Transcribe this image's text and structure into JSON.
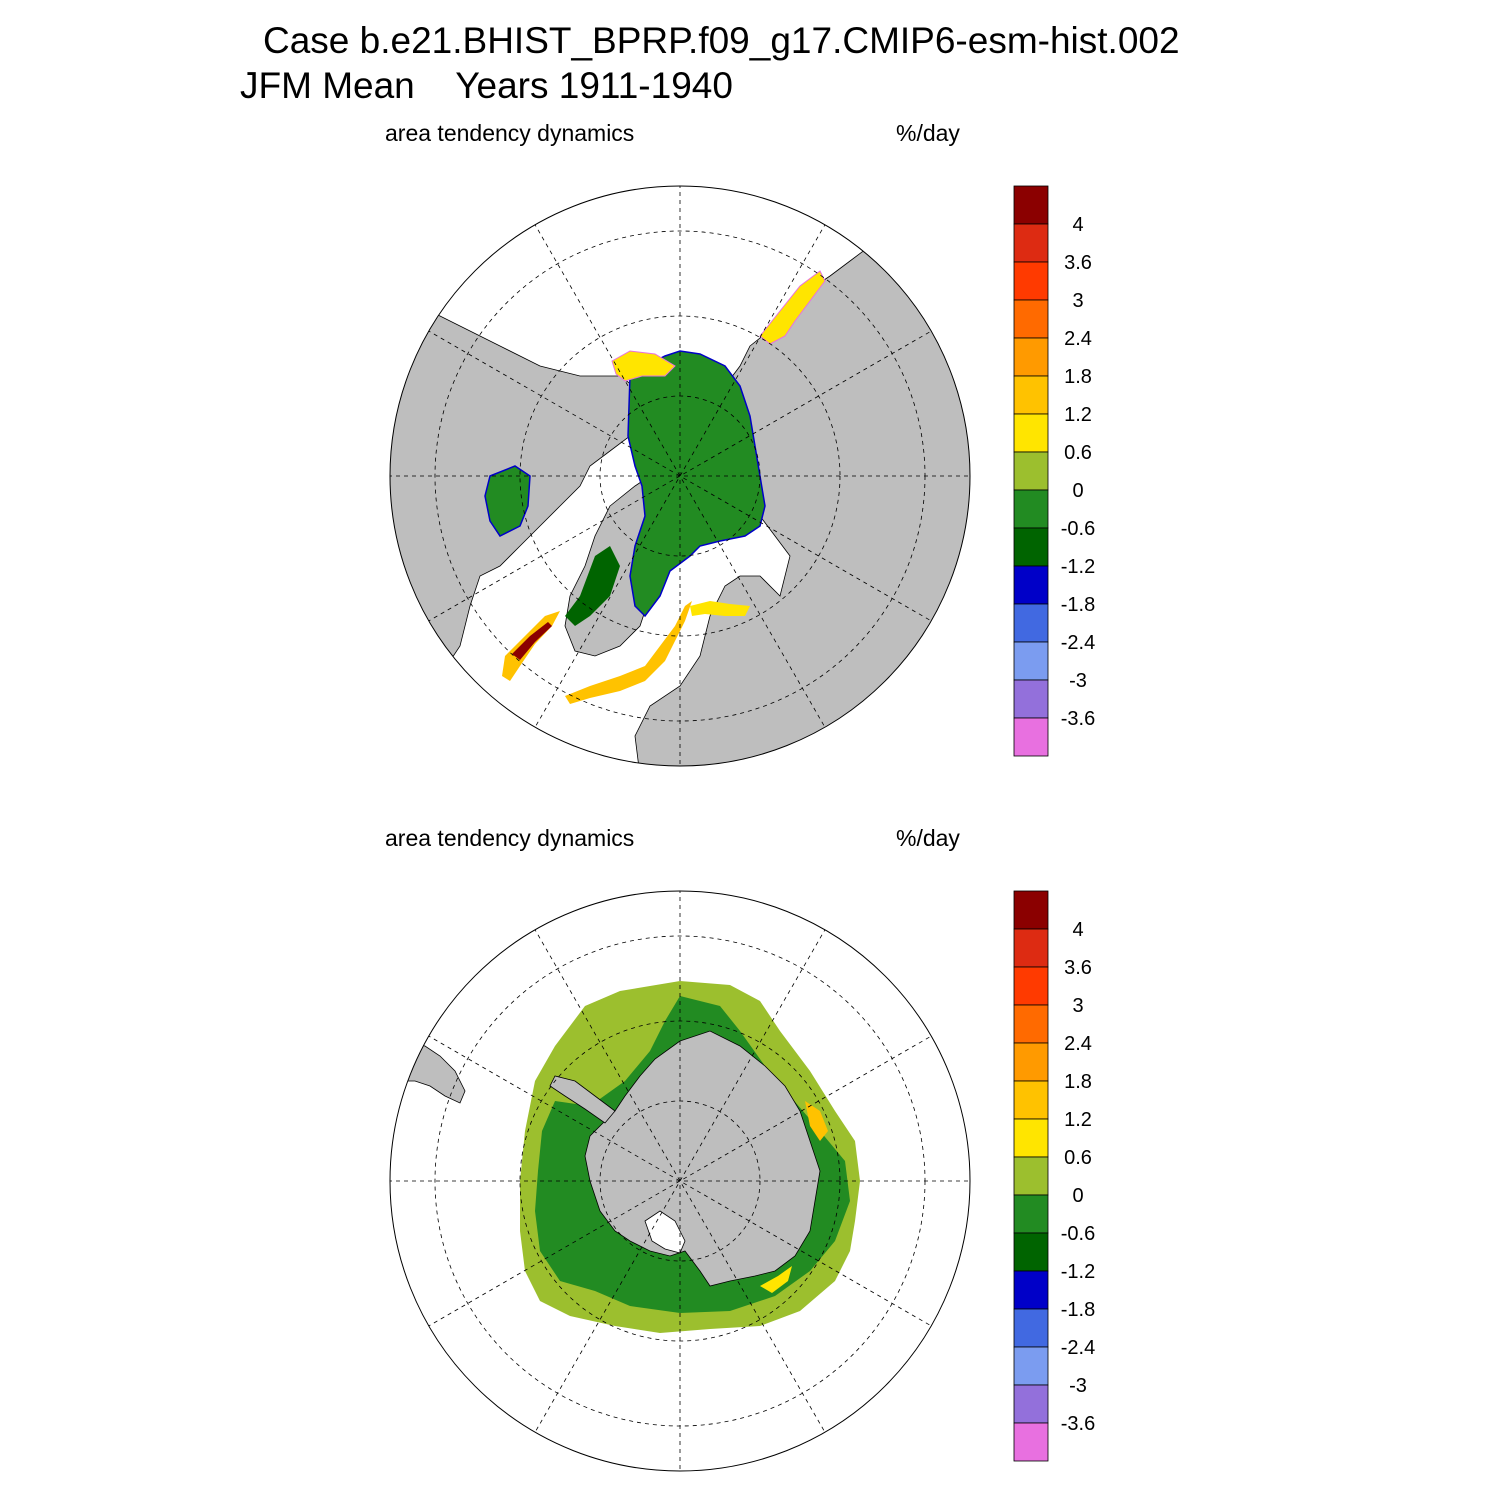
{
  "title": {
    "line1": "Case b.e21.BHIST_BPRP.f09_g17.CMIP6-esm-hist.002",
    "line2": "JFM Mean    Years 1911-1940"
  },
  "panels": [
    {
      "left_label": "area tendency dynamics",
      "right_label": "%/day",
      "hemisphere": "north"
    },
    {
      "left_label": "area tendency dynamics",
      "right_label": "%/day",
      "hemisphere": "south"
    }
  ],
  "colorbar": {
    "labels": [
      "4",
      "3.6",
      "3",
      "2.4",
      "1.8",
      "1.2",
      "0.6",
      "0",
      "-0.6",
      "-1.2",
      "-1.8",
      "-2.4",
      "-3",
      "-3.6"
    ],
    "colors": [
      "#8b0000",
      "#dd2b12",
      "#ff3a00",
      "#ff6a00",
      "#ff9a00",
      "#ffc200",
      "#ffe500",
      "#9cbf2e",
      "#228b22",
      "#006400",
      "#0000c8",
      "#4169e1",
      "#7b9cf0",
      "#9370db",
      "#e870e0"
    ]
  },
  "colors": {
    "land": "#bebebe",
    "ocean": "#ffffff"
  }
}
